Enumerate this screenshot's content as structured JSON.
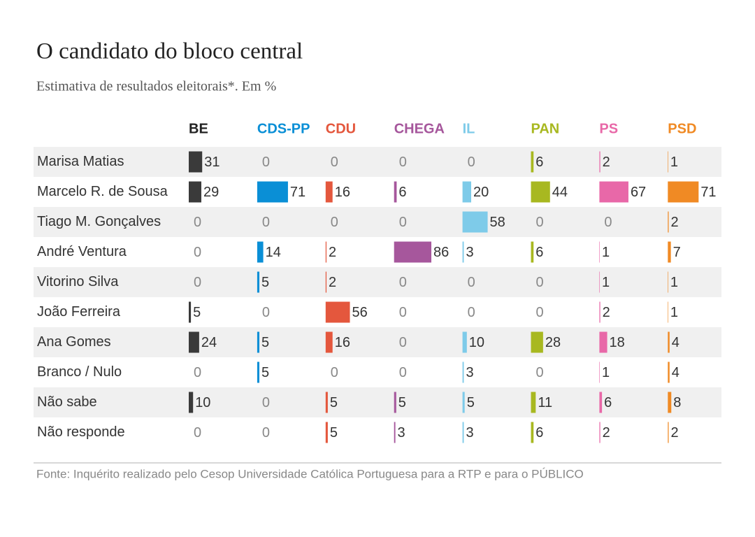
{
  "chart_data": {
    "type": "bar-table",
    "title": "O candidato do bloco central",
    "subtitle": "Estimativa de resultados eleitorais*. Em %",
    "source": "Fonte: Inquérito realizado pelo Cesop Universidade Católica Portuguesa para a RTP e para o PÚBLICO",
    "categories": [
      "Marisa Matias",
      "Marcelo R. de Sousa",
      "Tiago M. Gonçalves",
      "André Ventura",
      "Vitorino Silva",
      "João Ferreira",
      "Ana Gomes",
      "Branco / Nulo",
      "Não sabe",
      "Não responde"
    ],
    "series": [
      {
        "name": "BE",
        "color": "#3a3a3a",
        "values": [
          31,
          29,
          0,
          0,
          0,
          5,
          24,
          0,
          10,
          0
        ]
      },
      {
        "name": "CDS-PP",
        "color": "#0a8fd6",
        "values": [
          0,
          71,
          0,
          14,
          5,
          0,
          5,
          5,
          0,
          0
        ]
      },
      {
        "name": "CDU",
        "color": "#e4573d",
        "values": [
          0,
          16,
          0,
          2,
          2,
          56,
          16,
          0,
          5,
          5
        ]
      },
      {
        "name": "CHEGA",
        "color": "#a6579c",
        "values": [
          0,
          6,
          0,
          86,
          0,
          0,
          0,
          0,
          5,
          3
        ]
      },
      {
        "name": "IL",
        "color": "#7ecbe9",
        "values": [
          0,
          20,
          58,
          3,
          0,
          0,
          10,
          3,
          5,
          3
        ]
      },
      {
        "name": "PAN",
        "color": "#a8b820",
        "values": [
          6,
          44,
          0,
          6,
          0,
          0,
          28,
          0,
          11,
          6
        ]
      },
      {
        "name": "PS",
        "color": "#e868a8",
        "values": [
          2,
          67,
          0,
          1,
          1,
          2,
          18,
          1,
          6,
          2
        ]
      },
      {
        "name": "PSD",
        "color": "#f08a24",
        "values": [
          1,
          71,
          2,
          7,
          1,
          1,
          4,
          4,
          8,
          2
        ]
      }
    ]
  }
}
